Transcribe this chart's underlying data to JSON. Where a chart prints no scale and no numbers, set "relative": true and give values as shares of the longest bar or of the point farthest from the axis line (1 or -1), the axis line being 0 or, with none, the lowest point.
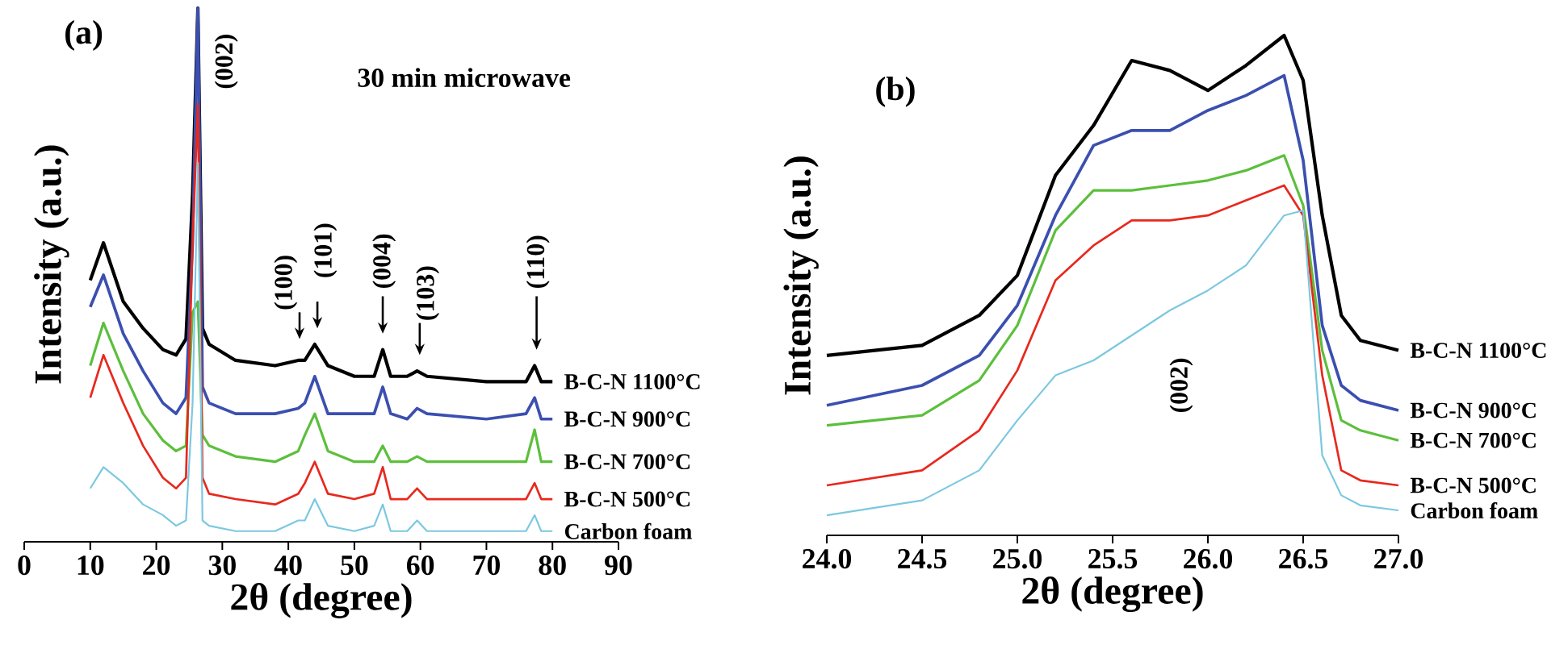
{
  "chart_data": [
    {
      "type": "line",
      "title": "(a)",
      "xlabel": "2θ (degree)",
      "ylabel": "Intensity (a.u.)",
      "relative": true,
      "xlim": [
        0,
        90
      ],
      "xticks": [
        0,
        10,
        20,
        30,
        40,
        50,
        60,
        70,
        80,
        90
      ],
      "x": [
        10,
        12,
        15,
        18,
        21,
        23,
        24.5,
        25.5,
        26.3,
        27,
        28,
        32,
        38,
        41.5,
        42.5,
        44,
        46,
        50,
        53,
        54.3,
        55.5,
        58,
        59.5,
        61,
        70,
        76,
        77.3,
        78.3,
        80
      ],
      "series": [
        {
          "name": "B-C-N 1100°C",
          "color": "#000000",
          "values": [
            0.49,
            0.56,
            0.45,
            0.4,
            0.36,
            0.35,
            0.38,
            0.65,
            1.0,
            0.4,
            0.37,
            0.34,
            0.33,
            0.34,
            0.34,
            0.37,
            0.33,
            0.31,
            0.31,
            0.36,
            0.31,
            0.31,
            0.32,
            0.31,
            0.3,
            0.3,
            0.33,
            0.3,
            0.3
          ]
        },
        {
          "name": "B-C-N 900°C",
          "color": "#3b4fb0",
          "values": [
            0.44,
            0.5,
            0.39,
            0.32,
            0.26,
            0.24,
            0.27,
            0.56,
            1.0,
            0.29,
            0.26,
            0.24,
            0.24,
            0.25,
            0.26,
            0.31,
            0.24,
            0.24,
            0.24,
            0.29,
            0.24,
            0.23,
            0.25,
            0.24,
            0.23,
            0.24,
            0.27,
            0.23,
            0.23
          ]
        },
        {
          "name": "B-C-N 700°C",
          "color": "#5cbf3c",
          "values": [
            0.33,
            0.41,
            0.32,
            0.24,
            0.19,
            0.17,
            0.18,
            0.43,
            0.45,
            0.2,
            0.18,
            0.16,
            0.15,
            0.17,
            0.2,
            0.24,
            0.17,
            0.15,
            0.15,
            0.18,
            0.15,
            0.15,
            0.16,
            0.15,
            0.15,
            0.15,
            0.21,
            0.15,
            0.15
          ]
        },
        {
          "name": "B-C-N 500°C",
          "color": "#e8281e",
          "values": [
            0.27,
            0.35,
            0.26,
            0.18,
            0.12,
            0.1,
            0.12,
            0.56,
            0.82,
            0.12,
            0.09,
            0.08,
            0.07,
            0.09,
            0.11,
            0.15,
            0.09,
            0.08,
            0.09,
            0.14,
            0.08,
            0.08,
            0.1,
            0.08,
            0.08,
            0.08,
            0.11,
            0.08,
            0.08
          ]
        },
        {
          "name": "Carbon foam",
          "color": "#7cc8e0",
          "values": [
            0.1,
            0.14,
            0.11,
            0.07,
            0.05,
            0.03,
            0.04,
            0.26,
            0.71,
            0.04,
            0.03,
            0.02,
            0.02,
            0.04,
            0.04,
            0.08,
            0.03,
            0.02,
            0.03,
            0.07,
            0.02,
            0.02,
            0.04,
            0.02,
            0.02,
            0.02,
            0.05,
            0.02,
            0.02
          ]
        }
      ],
      "annotations": [
        "30 min microwave",
        "(002)",
        "(100)",
        "(101)",
        "(004)",
        "(103)",
        "(110)"
      ]
    },
    {
      "type": "line",
      "title": "(b)",
      "xlabel": "2θ (degree)",
      "ylabel": "Intensity (a.u.)",
      "relative": true,
      "xlim": [
        24,
        27
      ],
      "xticks": [
        {
          "value": 24,
          "label": "24.0"
        },
        24.5,
        {
          "value": 25,
          "label": "25.0"
        },
        25.5,
        {
          "value": 26,
          "label": "26.0"
        },
        26.5,
        {
          "value": 27,
          "label": "27.0"
        }
      ],
      "x": [
        24,
        24.5,
        24.8,
        25.0,
        25.2,
        25.4,
        25.6,
        25.8,
        26.0,
        26.2,
        26.4,
        26.5,
        26.6,
        26.7,
        26.8,
        27
      ],
      "series": [
        {
          "name": "B-C-N 1100°C",
          "color": "#000000",
          "values": [
            0.36,
            0.38,
            0.44,
            0.52,
            0.72,
            0.82,
            0.95,
            0.93,
            0.89,
            0.94,
            1.0,
            0.91,
            0.64,
            0.44,
            0.39,
            0.37
          ]
        },
        {
          "name": "B-C-N 900°C",
          "color": "#3b4fb0",
          "values": [
            0.26,
            0.3,
            0.36,
            0.46,
            0.64,
            0.78,
            0.81,
            0.81,
            0.85,
            0.88,
            0.92,
            0.75,
            0.42,
            0.3,
            0.27,
            0.25
          ]
        },
        {
          "name": "B-C-N 700°C",
          "color": "#5cbf3c",
          "values": [
            0.22,
            0.24,
            0.31,
            0.42,
            0.61,
            0.69,
            0.69,
            0.7,
            0.71,
            0.73,
            0.76,
            0.66,
            0.37,
            0.23,
            0.21,
            0.19
          ]
        },
        {
          "name": "B-C-N 500°C",
          "color": "#e8281e",
          "values": [
            0.1,
            0.13,
            0.21,
            0.33,
            0.51,
            0.58,
            0.63,
            0.63,
            0.64,
            0.67,
            0.7,
            0.64,
            0.32,
            0.13,
            0.11,
            0.1
          ]
        },
        {
          "name": "Carbon foam",
          "color": "#7cc8e0",
          "values": [
            0.04,
            0.07,
            0.13,
            0.23,
            0.32,
            0.35,
            0.4,
            0.45,
            0.49,
            0.54,
            0.64,
            0.65,
            0.16,
            0.08,
            0.06,
            0.05
          ]
        }
      ],
      "annotations": [
        "(002)"
      ]
    }
  ]
}
